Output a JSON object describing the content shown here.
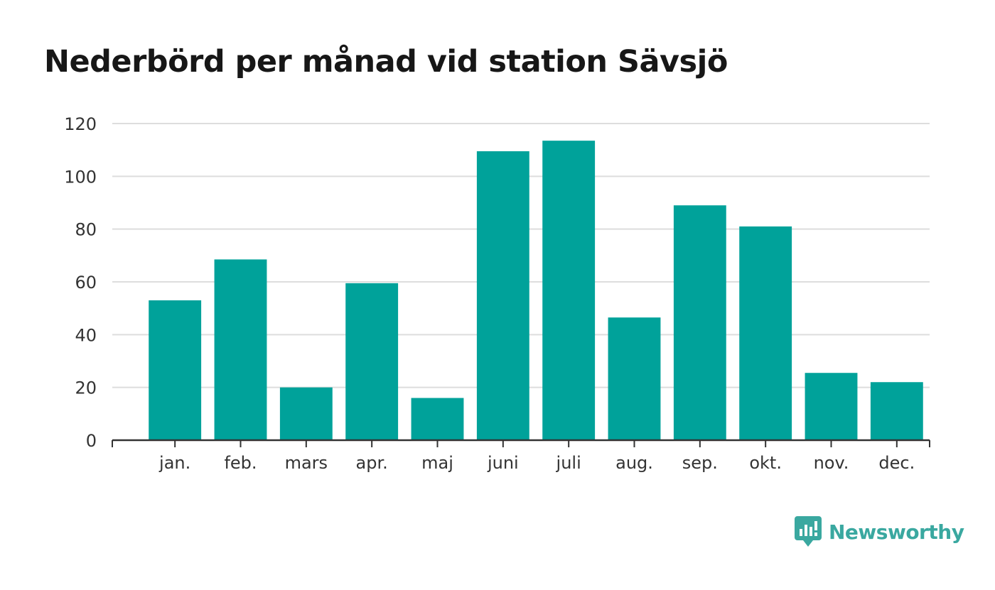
{
  "chart_data": {
    "type": "bar",
    "title": "Nederbörd per månad vid station Sävsjö",
    "categories": [
      "jan.",
      "feb.",
      "mars",
      "apr.",
      "maj",
      "juni",
      "juli",
      "aug.",
      "sep.",
      "okt.",
      "nov.",
      "dec."
    ],
    "values": [
      53,
      68.5,
      20,
      59.5,
      16,
      109.5,
      113.5,
      46.5,
      89,
      81,
      25.5,
      22
    ],
    "ylim": [
      0,
      120
    ],
    "yticks": [
      0,
      20,
      40,
      60,
      80,
      100,
      120
    ],
    "grid": true,
    "colors": {
      "bar": "#00a29a",
      "grid": "#dddddd",
      "axis": "#333333"
    }
  },
  "brand": {
    "name": "Newsworthy",
    "icon": "newsworthy-logo-icon",
    "color": "#3aa8a0"
  }
}
